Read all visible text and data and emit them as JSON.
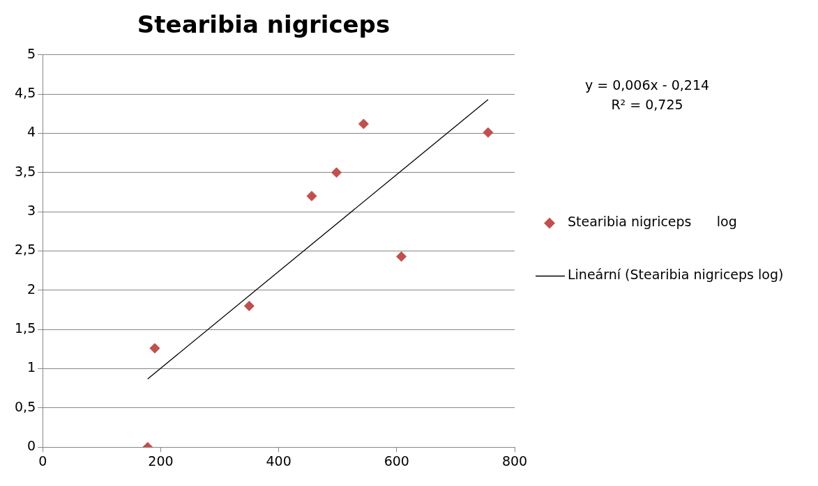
{
  "chart_data": {
    "type": "scatter",
    "title": "Stearibia nigriceps",
    "series": [
      {
        "name": "Stearibia nigriceps      log",
        "color": "#c0504d",
        "marker": "diamond",
        "x": [
          178,
          190,
          350,
          456,
          498,
          544,
          608,
          755
        ],
        "values": [
          0,
          1.26,
          1.8,
          3.2,
          3.5,
          4.12,
          2.43,
          4.01
        ]
      },
      {
        "name": "Lineární (Stearibia nigriceps log)",
        "type": "line",
        "color": "#000000",
        "marker": "none",
        "line_style": "solid",
        "x": [
          178,
          755
        ],
        "values": [
          0.87,
          4.43
        ]
      }
    ],
    "xlim": [
      0,
      800
    ],
    "xticks": [
      0,
      200,
      400,
      600,
      800
    ],
    "ylim": [
      0,
      5
    ],
    "yticks": [
      0,
      {
        "value": 0.5,
        "label": "0,5"
      },
      1,
      {
        "value": 1.5,
        "label": "1,5"
      },
      2,
      {
        "value": 2.5,
        "label": "2,5"
      },
      3,
      {
        "value": 3.5,
        "label": "3,5"
      },
      4,
      {
        "value": 4.5,
        "label": "4,5"
      },
      5
    ],
    "grid": "y",
    "legend": "right",
    "annotations": [
      "y = 0,006x - 0,214",
      "R² = 0,725"
    ]
  }
}
